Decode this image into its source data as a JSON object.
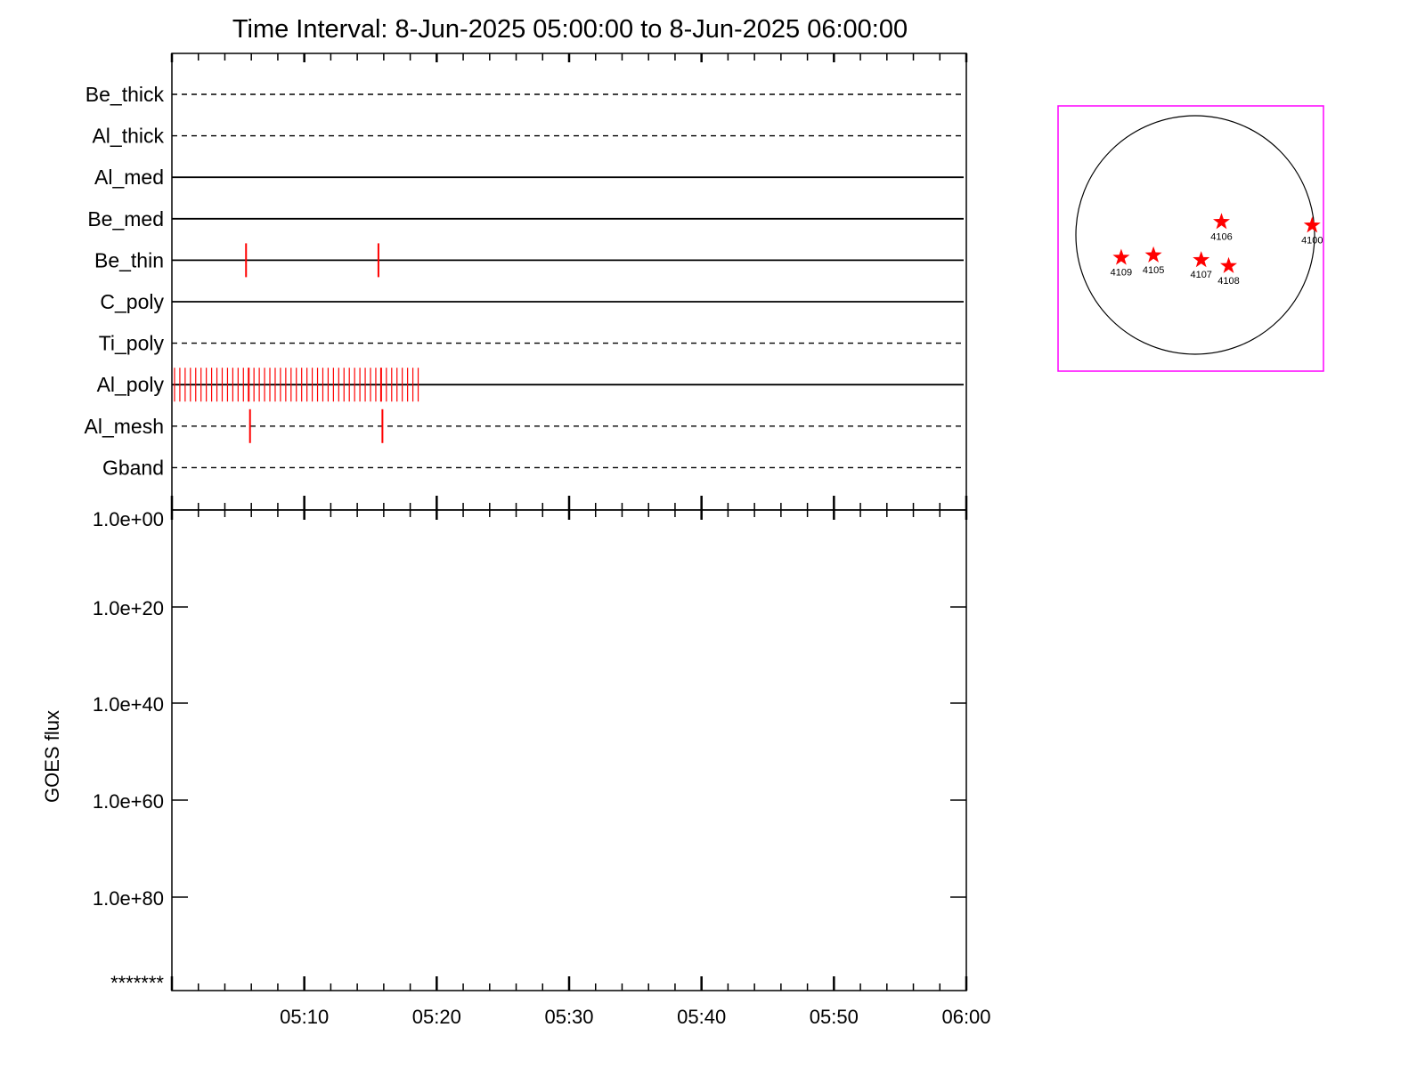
{
  "colors": {
    "background": "#ffffff",
    "axes": "#000000",
    "event_marks": "#ff0000",
    "sun_box": "#ff00ff",
    "sun_limb": "#000000",
    "active_region": "#ff0000"
  },
  "chart_data": [
    {
      "type": "timeline",
      "title": "Time Interval:  8-Jun-2025 05:00:00 to  8-Jun-2025 06:00:00",
      "x_range": [
        "05:00",
        "06:00"
      ],
      "tracks": [
        {
          "name": "Be_thick",
          "line_style": "dashed",
          "events": [],
          "dense_events": null
        },
        {
          "name": "Al_thick",
          "line_style": "dashed",
          "events": [],
          "dense_events": null
        },
        {
          "name": "Al_med",
          "line_style": "solid",
          "events": [],
          "dense_events": null
        },
        {
          "name": "Be_med",
          "line_style": "solid",
          "events": [],
          "dense_events": null
        },
        {
          "name": "Be_thin",
          "line_style": "solid",
          "events": [
            "05:05:36",
            "05:15:36"
          ],
          "dense_events": null
        },
        {
          "name": "C_poly",
          "line_style": "solid",
          "events": [],
          "dense_events": null
        },
        {
          "name": "Ti_poly",
          "line_style": "dashed",
          "events": [],
          "dense_events": null
        },
        {
          "name": "Al_poly",
          "line_style": "solid",
          "events": [
            "05:05:48",
            "05:15:48"
          ],
          "dense_events": {
            "start": "05:00:12",
            "end": "05:18:42",
            "step_seconds": 24
          }
        },
        {
          "name": "Al_mesh",
          "line_style": "dashed",
          "events": [
            "05:05:54",
            "05:15:54"
          ],
          "dense_events": null
        },
        {
          "name": "Gband",
          "line_style": "dashed",
          "events": [],
          "dense_events": null
        }
      ]
    },
    {
      "type": "line",
      "ylabel": "GOES flux",
      "x_range": [
        "05:00",
        "06:00"
      ],
      "x_ticks": [
        "05:10",
        "05:20",
        "05:30",
        "05:40",
        "05:50",
        "06:00"
      ],
      "y_ticks": [
        "1.0e+00",
        "1.0e+20",
        "1.0e+40",
        "1.0e+60",
        "1.0e+80",
        "*******"
      ],
      "series": []
    },
    {
      "type": "scatter",
      "description_of_marks": "active regions on solar disk",
      "points": [
        {
          "label": "4106",
          "x": 0.22,
          "y": 0.11
        },
        {
          "label": "4100",
          "x": 0.98,
          "y": 0.08
        },
        {
          "label": "4109",
          "x": -0.62,
          "y": -0.19
        },
        {
          "label": "4105",
          "x": -0.35,
          "y": -0.17
        },
        {
          "label": "4107",
          "x": 0.05,
          "y": -0.21
        },
        {
          "label": "4108",
          "x": 0.28,
          "y": -0.26
        }
      ]
    }
  ]
}
